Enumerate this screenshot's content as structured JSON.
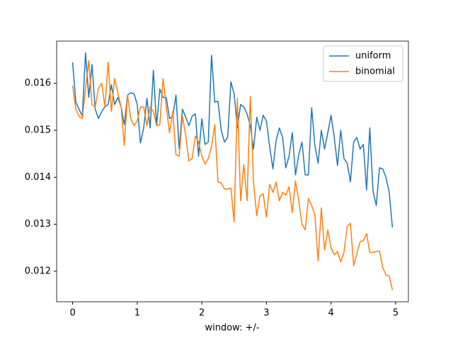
{
  "chart_data": {
    "type": "line",
    "xlabel": "window: +/-",
    "x": [
      0,
      0.05,
      0.1,
      0.15,
      0.2,
      0.25,
      0.3,
      0.35,
      0.4,
      0.45,
      0.5,
      0.55,
      0.6,
      0.65,
      0.7,
      0.75,
      0.8,
      0.85,
      0.9,
      0.95,
      1,
      1.05,
      1.1,
      1.15,
      1.2,
      1.25,
      1.3,
      1.35,
      1.4,
      1.45,
      1.5,
      1.55,
      1.6,
      1.65,
      1.7,
      1.75,
      1.8,
      1.85,
      1.9,
      1.95,
      2,
      2.05,
      2.1,
      2.15,
      2.2,
      2.25,
      2.3,
      2.35,
      2.4,
      2.45,
      2.5,
      2.55,
      2.6,
      2.65,
      2.7,
      2.75,
      2.8,
      2.85,
      2.9,
      2.95,
      3,
      3.05,
      3.1,
      3.15,
      3.2,
      3.25,
      3.3,
      3.35,
      3.4,
      3.45,
      3.5,
      3.55,
      3.6,
      3.65,
      3.7,
      3.75,
      3.8,
      3.85,
      3.9,
      3.95,
      4,
      4.05,
      4.1,
      4.15,
      4.2,
      4.25,
      4.3,
      4.35,
      4.4,
      4.45,
      4.5,
      4.55,
      4.6,
      4.65,
      4.7,
      4.75,
      4.8,
      4.85,
      4.9,
      4.95
    ],
    "series": [
      {
        "name": "uniform",
        "color": "#1f77b4",
        "values": [
          0.01645,
          0.0156,
          0.01545,
          0.0153,
          0.01665,
          0.0157,
          0.0164,
          0.01545,
          0.01525,
          0.0154,
          0.0155,
          0.01555,
          0.01597,
          0.01555,
          0.0157,
          0.0155,
          0.01512,
          0.01575,
          0.0158,
          0.01578,
          0.01555,
          0.01473,
          0.01505,
          0.01568,
          0.01505,
          0.01628,
          0.0151,
          0.01588,
          0.0157,
          0.0157,
          0.01525,
          0.0153,
          0.01575,
          0.0146,
          0.01545,
          0.01528,
          0.0151,
          0.0153,
          0.01535,
          0.01445,
          0.01525,
          0.0147,
          0.01475,
          0.0166,
          0.0156,
          0.01562,
          0.015,
          0.01475,
          0.01485,
          0.01603,
          0.01578,
          0.01505,
          0.01555,
          0.0155,
          0.01535,
          0.0151,
          0.0146,
          0.01528,
          0.015,
          0.01532,
          0.0152,
          0.01465,
          0.01418,
          0.01478,
          0.01505,
          0.01485,
          0.0142,
          0.01445,
          0.01495,
          0.01405,
          0.01448,
          0.01475,
          0.01405,
          0.01405,
          0.01548,
          0.01468,
          0.0143,
          0.015,
          0.0146,
          0.01495,
          0.01532,
          0.01485,
          0.01425,
          0.015,
          0.0144,
          0.0143,
          0.0139,
          0.01475,
          0.01485,
          0.0146,
          0.0147,
          0.01373,
          0.01505,
          0.0137,
          0.0134,
          0.0142,
          0.01418,
          0.014,
          0.01368,
          0.01293
        ]
      },
      {
        "name": "binomial",
        "color": "#ff7f0e",
        "values": [
          0.01595,
          0.01545,
          0.0153,
          0.01525,
          0.0159,
          0.01648,
          0.01555,
          0.0155,
          0.0159,
          0.016,
          0.0155,
          0.01645,
          0.0154,
          0.0161,
          0.0158,
          0.0155,
          0.01468,
          0.01575,
          0.01525,
          0.0151,
          0.0152,
          0.0155,
          0.0155,
          0.0151,
          0.0155,
          0.0154,
          0.0151,
          0.01512,
          0.0161,
          0.0155,
          0.01495,
          0.0154,
          0.01448,
          0.01445,
          0.0153,
          0.0149,
          0.01435,
          0.0144,
          0.01488,
          0.01475,
          0.01445,
          0.01428,
          0.0144,
          0.01465,
          0.01512,
          0.0139,
          0.01388,
          0.01375,
          0.01375,
          0.01377,
          0.01305,
          0.01568,
          0.0135,
          0.01427,
          0.0135,
          0.01572,
          0.0139,
          0.01318,
          0.0136,
          0.01365,
          0.01315,
          0.01385,
          0.01368,
          0.0139,
          0.0135,
          0.01368,
          0.01362,
          0.0138,
          0.01325,
          0.01392,
          0.0135,
          0.013,
          0.01288,
          0.01355,
          0.0134,
          0.0132,
          0.01222,
          0.01335,
          0.01245,
          0.01288,
          0.0125,
          0.01235,
          0.01242,
          0.0122,
          0.0124,
          0.01295,
          0.01302,
          0.01212,
          0.01238,
          0.01263,
          0.01265,
          0.0128,
          0.0124,
          0.0124,
          0.01242,
          0.01243,
          0.01208,
          0.01192,
          0.0119,
          0.0116
        ]
      }
    ],
    "xlim": [
      -0.2475,
      5.1975
    ],
    "xticks": [
      0,
      1,
      2,
      3,
      4,
      5
    ],
    "ylim": [
      0.01135,
      0.0169
    ],
    "yticks": [
      0.012,
      0.013,
      0.014,
      0.015,
      0.016
    ],
    "legend": "upper right"
  }
}
